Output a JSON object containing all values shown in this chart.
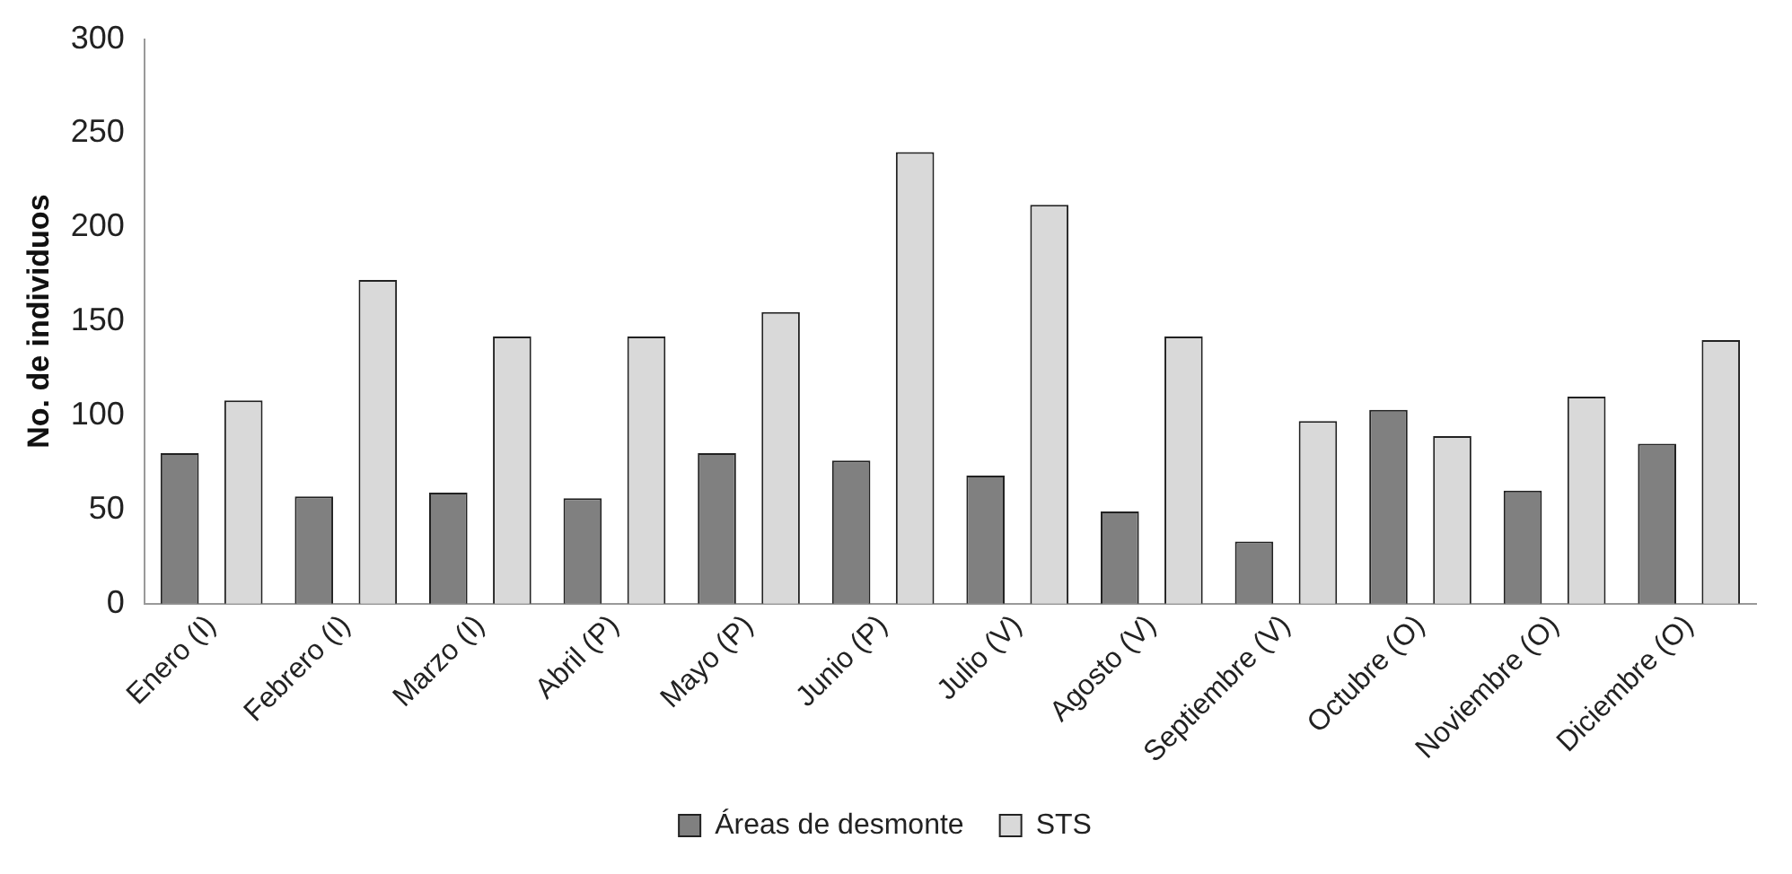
{
  "chart_data": {
    "type": "bar",
    "ylabel": "No. de individuos",
    "categories": [
      "Enero (I)",
      "Febrero (I)",
      "Marzo (I)",
      "Abril (P)",
      "Mayo (P)",
      "Junio (P)",
      "Julio (V)",
      "Agosto (V)",
      "Septiembre (V)",
      "Octubre (O)",
      "Noviembre (O)",
      "Diciembre (O)"
    ],
    "series": [
      {
        "name": "Áreas de desmonte",
        "color": "#808080",
        "values": [
          80,
          57,
          59,
          56,
          80,
          76,
          68,
          49,
          33,
          103,
          60,
          85
        ]
      },
      {
        "name": "STS",
        "color": "#d9d9d9",
        "values": [
          108,
          172,
          142,
          142,
          155,
          240,
          212,
          142,
          97,
          89,
          110,
          140
        ]
      }
    ],
    "ylim": [
      0,
      300
    ],
    "yticks": [
      0,
      50,
      100,
      150,
      200,
      250,
      300
    ],
    "grid": false,
    "legend": "bottom"
  }
}
